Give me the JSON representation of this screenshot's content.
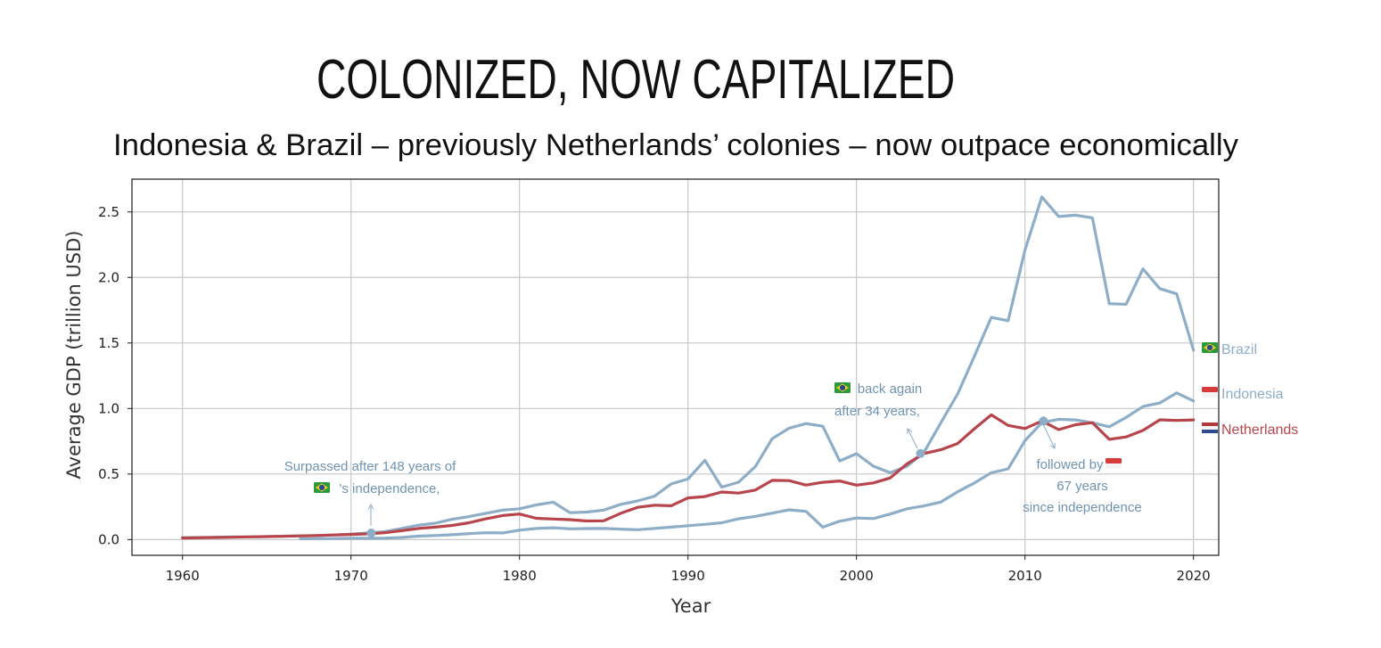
{
  "chart_data": {
    "type": "line",
    "title": "COLONIZED, NOW CAPITALIZED",
    "subtitle": "Indonesia & Brazil – previously Netherlands’ colonies – now outpace economically",
    "xlabel": "Year",
    "ylabel": "Average GDP (trillion USD)",
    "xlim": [
      1957,
      2021.5
    ],
    "ylim": [
      -0.12,
      2.75
    ],
    "xticks": [
      1960,
      1970,
      1980,
      1990,
      2000,
      2010,
      2020
    ],
    "yticks": [
      0.0,
      0.5,
      1.0,
      1.5,
      2.0,
      2.5
    ],
    "xtick_labels": [
      "1960",
      "1970",
      "1980",
      "1990",
      "2000",
      "2010",
      "2020"
    ],
    "ytick_labels": [
      "0.0",
      "0.5",
      "1.0",
      "1.5",
      "2.0",
      "2.5"
    ],
    "grid": true,
    "legend_position": "right of plot, at line ends",
    "series": [
      {
        "name": "Brazil",
        "color": "#8eaec8",
        "flag": "brazil-flag-icon",
        "x": [
          1960,
          1961,
          1962,
          1963,
          1964,
          1965,
          1966,
          1967,
          1968,
          1969,
          1970,
          1971,
          1972,
          1973,
          1974,
          1975,
          1976,
          1977,
          1978,
          1979,
          1980,
          1981,
          1982,
          1983,
          1984,
          1985,
          1986,
          1987,
          1988,
          1989,
          1990,
          1991,
          1992,
          1993,
          1994,
          1995,
          1996,
          1997,
          1998,
          1999,
          2000,
          2001,
          2002,
          2003,
          2004,
          2005,
          2006,
          2007,
          2008,
          2009,
          2010,
          2011,
          2012,
          2013,
          2014,
          2015,
          2016,
          2017,
          2018,
          2019,
          2020
        ],
        "values": [
          0.015,
          0.016,
          0.018,
          0.02,
          0.021,
          0.023,
          0.026,
          0.028,
          0.031,
          0.035,
          0.042,
          0.05,
          0.06,
          0.085,
          0.11,
          0.125,
          0.155,
          0.175,
          0.2,
          0.225,
          0.235,
          0.265,
          0.285,
          0.205,
          0.21,
          0.225,
          0.268,
          0.295,
          0.33,
          0.425,
          0.462,
          0.605,
          0.4,
          0.438,
          0.558,
          0.77,
          0.85,
          0.885,
          0.865,
          0.6,
          0.655,
          0.56,
          0.51,
          0.56,
          0.665,
          0.89,
          1.11,
          1.4,
          1.695,
          1.67,
          2.21,
          2.615,
          2.465,
          2.475,
          2.455,
          1.8,
          1.795,
          2.065,
          1.915,
          1.875,
          1.445
        ]
      },
      {
        "name": "Indonesia",
        "color": "#8eaec8",
        "flag": "indonesia-flag-icon",
        "x": [
          1967,
          1968,
          1969,
          1970,
          1971,
          1972,
          1973,
          1974,
          1975,
          1976,
          1977,
          1978,
          1979,
          1980,
          1981,
          1982,
          1983,
          1984,
          1985,
          1986,
          1987,
          1988,
          1989,
          1990,
          1991,
          1992,
          1993,
          1994,
          1995,
          1996,
          1997,
          1998,
          1999,
          2000,
          2001,
          2002,
          2003,
          2004,
          2005,
          2006,
          2007,
          2008,
          2009,
          2010,
          2011,
          2012,
          2013,
          2014,
          2015,
          2016,
          2017,
          2018,
          2019,
          2020
        ],
        "values": [
          0.006,
          0.007,
          0.008,
          0.01,
          0.01,
          0.011,
          0.016,
          0.026,
          0.031,
          0.037,
          0.045,
          0.052,
          0.051,
          0.072,
          0.085,
          0.09,
          0.082,
          0.084,
          0.085,
          0.08,
          0.075,
          0.085,
          0.095,
          0.106,
          0.116,
          0.128,
          0.158,
          0.177,
          0.202,
          0.227,
          0.215,
          0.095,
          0.14,
          0.165,
          0.16,
          0.195,
          0.235,
          0.257,
          0.286,
          0.365,
          0.432,
          0.51,
          0.54,
          0.755,
          0.893,
          0.918,
          0.913,
          0.891,
          0.861,
          0.932,
          1.015,
          1.042,
          1.119,
          1.058
        ]
      },
      {
        "name": "Netherlands",
        "color": "#b8454c",
        "flag": "netherlands-flag-icon",
        "x": [
          1960,
          1961,
          1962,
          1963,
          1964,
          1965,
          1966,
          1967,
          1968,
          1969,
          1970,
          1971,
          1972,
          1973,
          1974,
          1975,
          1976,
          1977,
          1978,
          1979,
          1980,
          1981,
          1982,
          1983,
          1984,
          1985,
          1986,
          1987,
          1988,
          1989,
          1990,
          1991,
          1992,
          1993,
          1994,
          1995,
          1996,
          1997,
          1998,
          1999,
          2000,
          2001,
          2002,
          2003,
          2004,
          2005,
          2006,
          2007,
          2008,
          2009,
          2010,
          2011,
          2012,
          2013,
          2014,
          2015,
          2016,
          2017,
          2018,
          2019,
          2020
        ],
        "values": [
          0.012,
          0.014,
          0.016,
          0.018,
          0.021,
          0.023,
          0.025,
          0.028,
          0.031,
          0.035,
          0.039,
          0.044,
          0.052,
          0.068,
          0.085,
          0.095,
          0.108,
          0.128,
          0.158,
          0.183,
          0.195,
          0.162,
          0.157,
          0.152,
          0.142,
          0.143,
          0.2,
          0.246,
          0.262,
          0.258,
          0.318,
          0.328,
          0.363,
          0.355,
          0.378,
          0.452,
          0.45,
          0.416,
          0.437,
          0.447,
          0.415,
          0.432,
          0.47,
          0.578,
          0.657,
          0.685,
          0.733,
          0.846,
          0.952,
          0.871,
          0.847,
          0.905,
          0.839,
          0.876,
          0.892,
          0.765,
          0.783,
          0.833,
          0.914,
          0.909,
          0.913
        ]
      }
    ],
    "annotations": [
      {
        "id": "anno1",
        "lines": [
          "Surpassed after 148 years of",
          "'s independence,"
        ],
        "flag": "brazil-flag-icon",
        "point": {
          "x": 1971.2,
          "y": 0.05
        }
      },
      {
        "id": "anno2",
        "lines": [
          "back again",
          "after 34 years,"
        ],
        "flag": "brazil-flag-icon",
        "point": {
          "x": 2003.8,
          "y": 0.657
        }
      },
      {
        "id": "anno3",
        "lines": [
          "followed by",
          "67 years",
          "since independence"
        ],
        "flag": "indonesia-flag-icon",
        "point": {
          "x": 2011.1,
          "y": 0.905
        }
      }
    ]
  }
}
